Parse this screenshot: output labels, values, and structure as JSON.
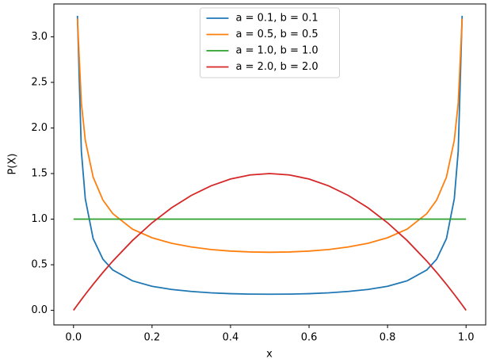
{
  "chart_data": {
    "type": "line",
    "xlabel": "x",
    "ylabel": "P(X)",
    "x": [
      0,
      0.01,
      0.02,
      0.03,
      0.05,
      0.075,
      0.1,
      0.15,
      0.2,
      0.25,
      0.3,
      0.35,
      0.4,
      0.45,
      0.5,
      0.55,
      0.6,
      0.65,
      0.7,
      0.75,
      0.8,
      0.85,
      0.9,
      0.925,
      0.95,
      0.97,
      0.98,
      0.99,
      1
    ],
    "series": [
      {
        "name": "a = 0.1, b = 0.1",
        "color": "#1f77b4",
        "values": [
          null,
          3.23,
          1.746,
          1.224,
          0.787,
          0.56,
          0.443,
          0.324,
          0.264,
          0.229,
          0.207,
          0.192,
          0.183,
          0.178,
          0.177,
          0.178,
          0.183,
          0.192,
          0.207,
          0.229,
          0.264,
          0.324,
          0.443,
          0.56,
          0.787,
          1.224,
          1.746,
          3.23,
          null
        ]
      },
      {
        "name": "a = 0.5, b = 0.5",
        "color": "#ff7f0e",
        "values": [
          null,
          3.199,
          2.274,
          1.866,
          1.461,
          1.209,
          1.061,
          0.891,
          0.796,
          0.735,
          0.695,
          0.667,
          0.65,
          0.64,
          0.637,
          0.64,
          0.65,
          0.667,
          0.695,
          0.735,
          0.796,
          0.891,
          1.061,
          1.209,
          1.461,
          1.866,
          2.274,
          3.199,
          null
        ]
      },
      {
        "name": "a = 1.0, b = 1.0",
        "color": "#2ca02c",
        "values": [
          1,
          1,
          1,
          1,
          1,
          1,
          1,
          1,
          1,
          1,
          1,
          1,
          1,
          1,
          1,
          1,
          1,
          1,
          1,
          1,
          1,
          1,
          1,
          1,
          1,
          1,
          1,
          1,
          1
        ]
      },
      {
        "name": "a = 2.0, b = 2.0",
        "color": "#d62728",
        "values": [
          0,
          0.0594,
          0.1176,
          0.1746,
          0.285,
          0.416,
          0.54,
          0.765,
          0.96,
          1.125,
          1.26,
          1.365,
          1.44,
          1.485,
          1.5,
          1.485,
          1.44,
          1.365,
          1.26,
          1.125,
          0.96,
          0.765,
          0.54,
          0.416,
          0.285,
          0.1746,
          0.1176,
          0.0594,
          0
        ]
      }
    ],
    "xlim": [
      -0.05,
      1.05
    ],
    "xticks": [
      {
        "value": 0,
        "label": "0.0"
      },
      0.2,
      0.4,
      0.6,
      0.8,
      {
        "value": 1,
        "label": "1.0"
      }
    ],
    "ylim": [
      -0.16,
      3.36
    ],
    "yticks": [
      {
        "value": 0,
        "label": "0.0"
      },
      0.5,
      {
        "value": 1,
        "label": "1.0"
      },
      1.5,
      {
        "value": 2,
        "label": "2.0"
      },
      2.5,
      {
        "value": 3,
        "label": "3.0"
      }
    ],
    "legend": "upper center",
    "grid": false
  }
}
